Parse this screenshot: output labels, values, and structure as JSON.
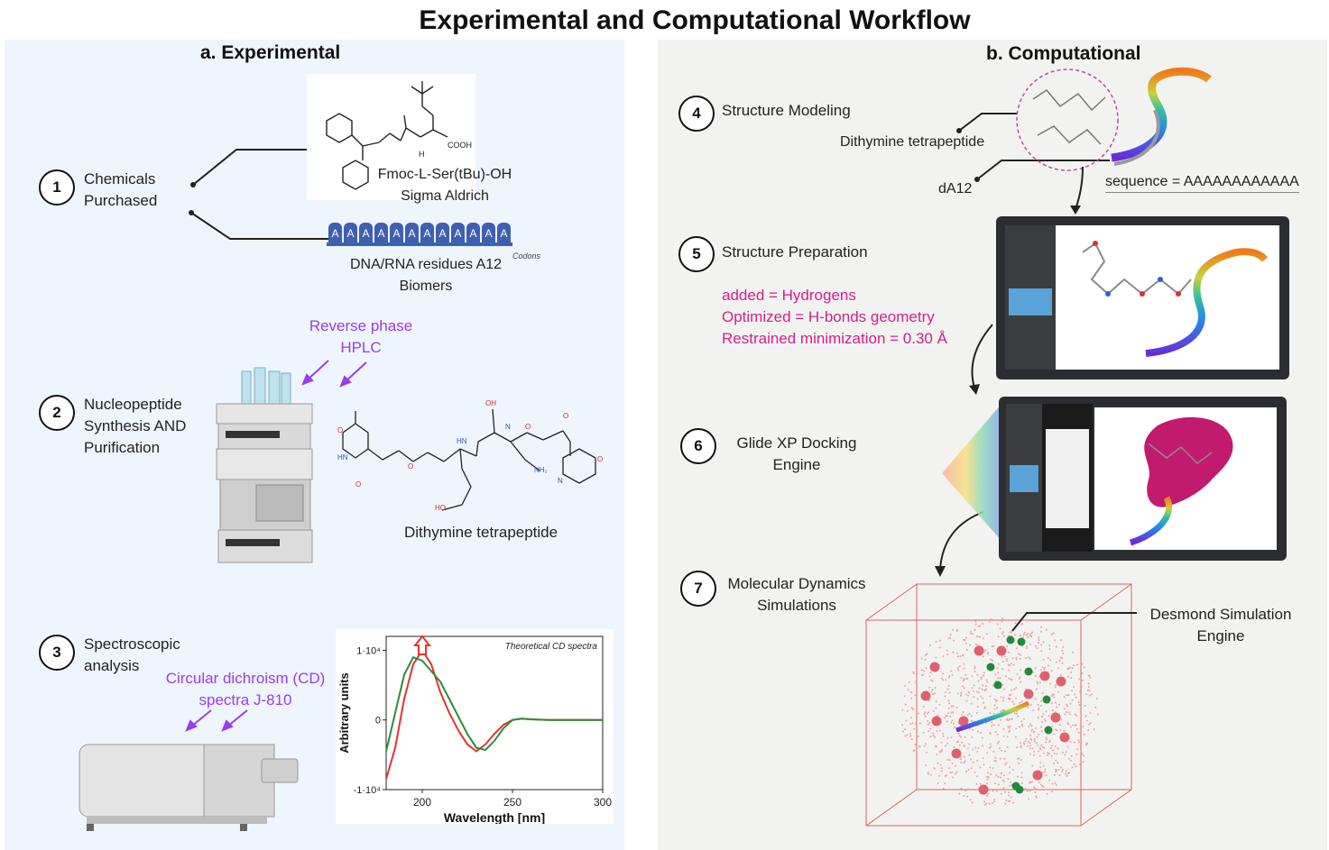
{
  "title": "Experimental and Computational Workflow",
  "panel_a": {
    "heading": "a. Experimental",
    "steps": [
      {
        "num": "1",
        "line1": "Chemicals",
        "line2": "Purchased"
      },
      {
        "num": "2",
        "line1": "Nucleopeptide",
        "line2": "Synthesis AND",
        "line3": "Purification"
      },
      {
        "num": "3",
        "line1": "Spectroscopic",
        "line2": "analysis"
      }
    ],
    "fmoc": {
      "name": "Fmoc-L-Ser(tBu)-OH",
      "supplier": "Sigma Aldrich",
      "cooh": "COOH",
      "nh": "H"
    },
    "dna": {
      "name": "DNA/RNA residues A12",
      "supplier": "Biomers",
      "residues": [
        "A",
        "A",
        "A",
        "A",
        "A",
        "A",
        "A",
        "A",
        "A",
        "A",
        "A",
        "A"
      ],
      "codons": "Codons"
    },
    "hplc": {
      "line1": "Reverse phase",
      "line2": "HPLC"
    },
    "tetrapeptide_label": "Dithymine tetrapeptide",
    "cd": {
      "line1": "Circular dichroism (CD)",
      "line2": "spectra J-810"
    }
  },
  "chart_data": {
    "type": "line",
    "title": "Theoretical CD spectra",
    "xlabel": "Wavelength [nm]",
    "ylabel": "Arbitrary units",
    "xlim": [
      180,
      300
    ],
    "ylim": [
      -10000,
      12000
    ],
    "x_ticks": [
      "200",
      "250",
      "300"
    ],
    "y_ticks": [
      "1·10⁴",
      "0",
      "-1·10⁴"
    ],
    "series": [
      {
        "color": "#e8312d",
        "x": [
          180,
          185,
          190,
          195,
          200,
          205,
          210,
          215,
          220,
          225,
          230,
          235,
          240,
          245,
          250,
          255,
          260,
          270,
          280,
          300
        ],
        "y": [
          -8500,
          -4000,
          3000,
          8000,
          10000,
          8000,
          4000,
          1000,
          -1500,
          -3500,
          -4500,
          -3500,
          -2000,
          -700,
          0,
          200,
          100,
          0,
          0,
          0
        ]
      },
      {
        "color": "#2e8b3c",
        "x": [
          180,
          185,
          190,
          195,
          200,
          205,
          210,
          215,
          220,
          225,
          230,
          235,
          240,
          245,
          250,
          255,
          260,
          270,
          280,
          300
        ],
        "y": [
          -4500,
          1000,
          6500,
          9000,
          8500,
          7000,
          5500,
          3000,
          500,
          -2000,
          -4000,
          -4300,
          -3000,
          -1200,
          0,
          200,
          100,
          0,
          0,
          0
        ]
      }
    ],
    "arrow_marker_x": 200
  },
  "panel_b": {
    "heading": "b. Computational",
    "steps": [
      {
        "num": "4",
        "line1": "Structure Modeling"
      },
      {
        "num": "5",
        "line1": "Structure Preparation"
      },
      {
        "num": "6",
        "line1": "Glide XP  Docking",
        "line2": "Engine"
      },
      {
        "num": "7",
        "line1": "Molecular Dynamics",
        "line2": "Simulations"
      }
    ],
    "modeling": {
      "peptide": "Dithymine tetrapeptide",
      "dna": "dA12",
      "sequence": "sequence = AAAAAAAAAAAA"
    },
    "prep": [
      "added = Hydrogens",
      "Optimized = H-bonds geometry",
      "Restrained minimization = 0.30 Å"
    ],
    "desmond": {
      "line1": "Desmond Simulation",
      "line2": "Engine"
    }
  },
  "colors": {
    "purple": "#9b3cf0",
    "magenta": "#d4208c",
    "chart_red": "#e8312d",
    "chart_green": "#2e8b3c",
    "dna_blue": "#3f5fb0"
  }
}
